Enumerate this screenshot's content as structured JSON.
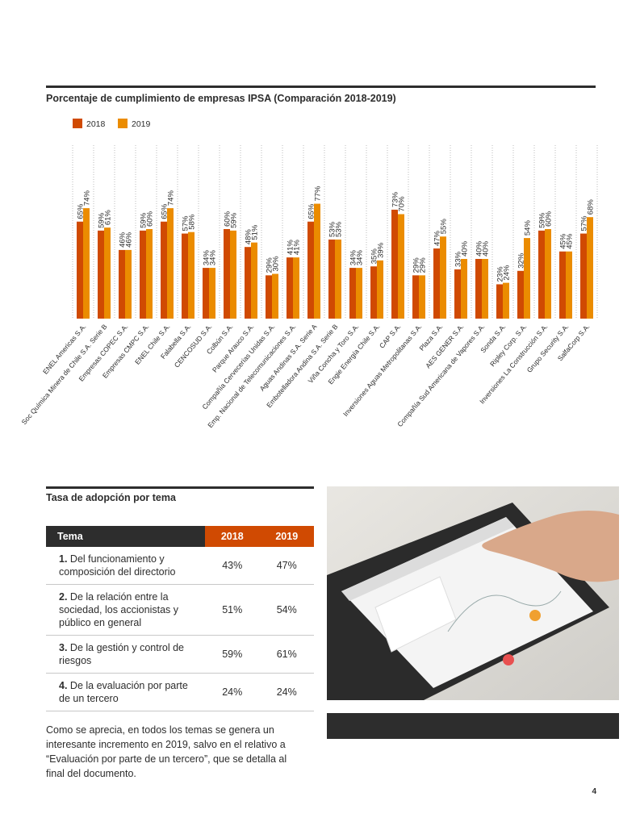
{
  "chart_data": {
    "type": "bar",
    "title": "Porcentaje de cumplimiento de empresas IPSA (Comparación 2018-2019)",
    "categories": [
      "ENEL Americas S.A.",
      "Soc Química Minera de Chile S.A. Serie B",
      "Empresas COPEC S.A.",
      "Empresas CMPC S.A.",
      "ENEL Chile S.A.",
      "Falabella S.A.",
      "CENCOSUD S.A.",
      "Colbún S.A.",
      "Parque Arauco S.A.",
      "Compañía Cervecerías Unidas S.A.",
      "Emp. Nacional de Telecomunicaciones S.A.",
      "Aguas Andinas S.A. Serie A",
      "Embotelladora Andina S.A. Serie B",
      "Viña Concha y Toro S.A.",
      "Engie Energía Chile S.A.",
      "CAP S.A.",
      "Inversiones Aguas Metropolitanas S.A.",
      "Plaza S.A.",
      "AES GENER S.A.",
      "Compañía Sud Americana de Vapores S.A.",
      "Sonda S.A.",
      "Ripley Corp. S.A.",
      "Inversiones La Construcción S.A.",
      "Grupo Security S.A.",
      "SalfaCorp S.A."
    ],
    "series": [
      {
        "name": "2018",
        "color": "#d04a02",
        "values": [
          65,
          59,
          46,
          59,
          65,
          57,
          34,
          60,
          48,
          29,
          41,
          65,
          53,
          34,
          35,
          73,
          29,
          47,
          33,
          40,
          23,
          32,
          59,
          45,
          57
        ],
        "value_labels": [
          "65%",
          "59%",
          "46%",
          "59%",
          "65%",
          "57%",
          "34%",
          "60%",
          "48%",
          "29%",
          "41%",
          "65%",
          "53%",
          "34%",
          "35%",
          "73%",
          "29%",
          "47%",
          "33%",
          "40%",
          "23%",
          "32%",
          "59%",
          "45%",
          "57%"
        ]
      },
      {
        "name": "2019",
        "color": "#eb8c00",
        "values": [
          74,
          61,
          46,
          60,
          74,
          58,
          34,
          59,
          51,
          30,
          41,
          77,
          53,
          34,
          39,
          70,
          29,
          55,
          40,
          40,
          24,
          54,
          60,
          45,
          68
        ],
        "value_labels": [
          "74%",
          "61%",
          "46%",
          "60%",
          "74%",
          "58%",
          "34%",
          "59%",
          "51%",
          "30%",
          "41%",
          "77%",
          "53%",
          "34%",
          "39%",
          "70%",
          "29%",
          "55%",
          "40%",
          "40%",
          "24%",
          "54%",
          "60%",
          "45%",
          "68%"
        ]
      }
    ],
    "legend": "top-left",
    "grid": true
  },
  "table": {
    "title": "Tasa de adopción por tema",
    "header": [
      "Tema",
      "2018",
      "2019"
    ],
    "rows": [
      [
        "1.",
        "Del funcionamiento y composición del directorio",
        "43%",
        "47%"
      ],
      [
        "2.",
        "De la relación entre la sociedad, los accionistas y público en general",
        "51%",
        "54%"
      ],
      [
        "3.",
        "De la gestión y control de riesgos",
        "59%",
        "61%"
      ],
      [
        "4.",
        "De la evaluación por parte de un tercero",
        "24%",
        "24%"
      ]
    ]
  },
  "paragraph": "Como se aprecia, en todos los temas se genera un interesante incremento en 2019, salvo en el relativo a “Evaluación por parte de un tercero”, que se detalla al final del documento.",
  "page_number": "4"
}
